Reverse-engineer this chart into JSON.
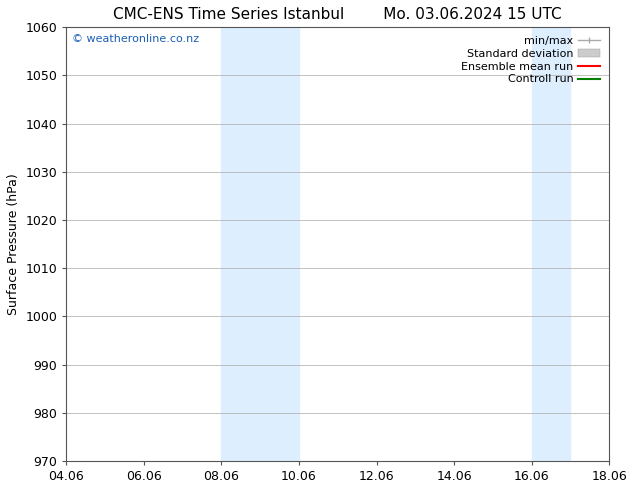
{
  "title_left": "CMC-ENS Time Series Istanbul",
  "title_right": "Mo. 03.06.2024 15 UTC",
  "ylabel": "Surface Pressure (hPa)",
  "ylim": [
    970,
    1060
  ],
  "yticks": [
    970,
    980,
    990,
    1000,
    1010,
    1020,
    1030,
    1040,
    1050,
    1060
  ],
  "xlim_start": 0,
  "xlim_end": 14,
  "xtick_labels": [
    "04.06",
    "06.06",
    "08.06",
    "10.06",
    "12.06",
    "14.06",
    "16.06",
    "18.06"
  ],
  "xtick_positions": [
    0,
    2,
    4,
    6,
    8,
    10,
    12,
    14
  ],
  "shaded_regions": [
    {
      "x_start": 4.0,
      "x_end": 6.0
    },
    {
      "x_start": 12.0,
      "x_end": 13.0
    }
  ],
  "shaded_color": "#ddeeff",
  "watermark_text": "© weatheronline.co.nz",
  "watermark_color": "#1a5fb4",
  "legend_items": [
    {
      "label": "min/max",
      "color": "#aaaaaa",
      "lw": 1.0
    },
    {
      "label": "Standard deviation",
      "color": "#cccccc",
      "lw": 5
    },
    {
      "label": "Ensemble mean run",
      "color": "red",
      "lw": 1.5
    },
    {
      "label": "Controll run",
      "color": "green",
      "lw": 1.5
    }
  ],
  "bg_color": "#ffffff",
  "grid_color": "#aaaaaa",
  "title_fontsize": 11,
  "axis_label_fontsize": 9,
  "tick_fontsize": 9,
  "legend_fontsize": 8,
  "watermark_fontsize": 8
}
